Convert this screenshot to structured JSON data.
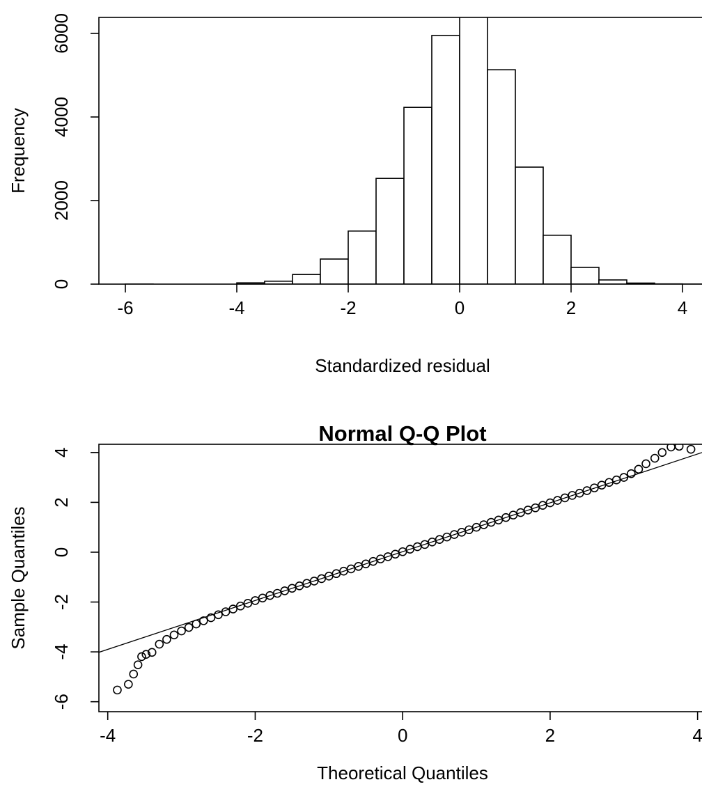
{
  "chart_data": [
    {
      "type": "histogram",
      "xlabel": "Standardized residual",
      "ylabel": "Frequency",
      "bins": [
        -6,
        -5.5,
        -5,
        -4.5,
        -4,
        -3.5,
        -3,
        -2.5,
        -2,
        -1.5,
        -1,
        -0.5,
        0,
        0.5,
        1,
        1.5,
        2,
        2.5,
        3,
        3.5,
        4,
        4.5
      ],
      "values": [
        1,
        0,
        0,
        0,
        30,
        70,
        230,
        600,
        1270,
        2530,
        4230,
        5950,
        6600,
        5130,
        2800,
        1170,
        400,
        100,
        25,
        5,
        1
      ],
      "color": "#ffffff",
      "xlim": [
        -6.475,
        4.35
      ],
      "ylim": [
        0,
        6383
      ],
      "xticks": [
        -6,
        -4,
        -2,
        0,
        2,
        4
      ],
      "yticks": [
        0,
        2000,
        4000,
        6000
      ]
    },
    {
      "type": "scatter",
      "title": "Normal Q-Q Plot",
      "xlabel": "Theoretical Quantiles",
      "ylabel": "Sample Quantiles",
      "x": [
        -3.87,
        -3.72,
        -3.65,
        -3.59,
        -3.54,
        -3.48,
        -3.4,
        -3.3,
        -3.2,
        -3.1,
        -3.0,
        -2.9,
        -2.8,
        -2.7,
        -2.6,
        -2.5,
        -2.4,
        -2.3,
        -2.2,
        -2.1,
        -2.0,
        -1.9,
        -1.8,
        -1.7,
        -1.6,
        -1.5,
        -1.4,
        -1.3,
        -1.2,
        -1.1,
        -1.0,
        -0.9,
        -0.8,
        -0.7,
        -0.6,
        -0.5,
        -0.4,
        -0.3,
        -0.2,
        -0.1,
        0,
        0.1,
        0.2,
        0.3,
        0.4,
        0.5,
        0.6,
        0.7,
        0.8,
        0.9,
        1.0,
        1.1,
        1.2,
        1.3,
        1.4,
        1.5,
        1.6,
        1.7,
        1.8,
        1.9,
        2.0,
        2.1,
        2.2,
        2.3,
        2.4,
        2.5,
        2.6,
        2.7,
        2.8,
        2.9,
        3.0,
        3.1,
        3.2,
        3.3,
        3.42,
        3.52,
        3.64,
        3.75,
        3.91
      ],
      "values": [
        -5.53,
        -5.3,
        -4.89,
        -4.52,
        -4.19,
        -4.1,
        -4.02,
        -3.69,
        -3.5,
        -3.32,
        -3.16,
        -3.02,
        -2.88,
        -2.75,
        -2.63,
        -2.51,
        -2.39,
        -2.28,
        -2.16,
        -2.05,
        -1.94,
        -1.84,
        -1.74,
        -1.65,
        -1.55,
        -1.45,
        -1.35,
        -1.25,
        -1.16,
        -1.06,
        -0.96,
        -0.86,
        -0.76,
        -0.67,
        -0.57,
        -0.47,
        -0.37,
        -0.27,
        -0.18,
        -0.08,
        0.02,
        0.12,
        0.22,
        0.31,
        0.41,
        0.51,
        0.61,
        0.71,
        0.8,
        0.9,
        1.0,
        1.1,
        1.2,
        1.29,
        1.39,
        1.49,
        1.59,
        1.69,
        1.78,
        1.88,
        1.98,
        2.08,
        2.18,
        2.28,
        2.37,
        2.47,
        2.58,
        2.69,
        2.8,
        2.9,
        3.0,
        3.15,
        3.33,
        3.55,
        3.77,
        4.0,
        4.22,
        4.25,
        4.13
      ],
      "color": "#000000",
      "reference_line": {
        "slope": 0.98,
        "intercept": 0.02
      },
      "xlim": [
        -4.12,
        4.06
      ],
      "ylim": [
        -6.4,
        4.33
      ],
      "xticks": [
        -4,
        -2,
        0,
        2,
        4
      ],
      "yticks": [
        -6,
        -4,
        -2,
        0,
        2,
        4
      ]
    }
  ]
}
